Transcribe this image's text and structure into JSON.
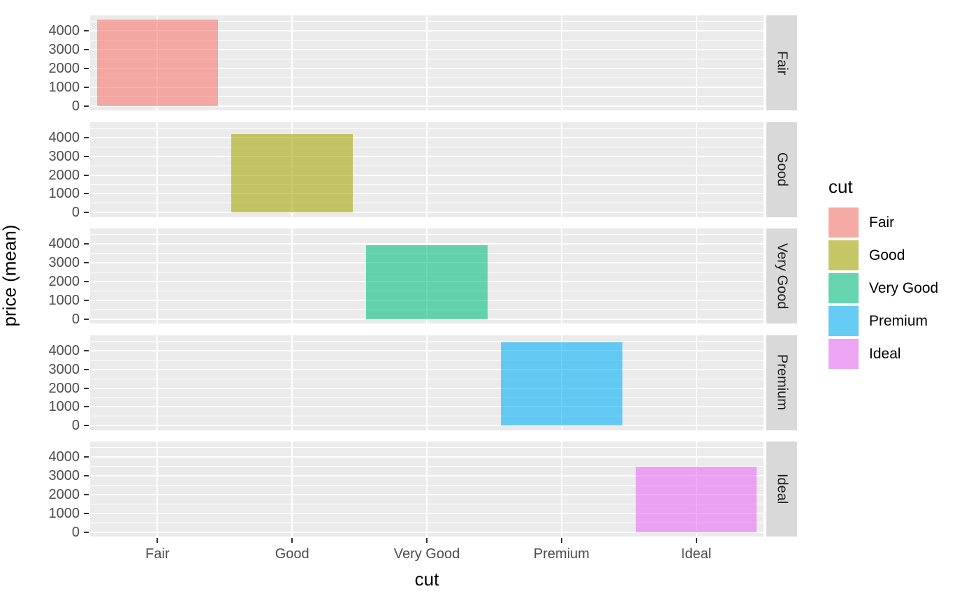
{
  "chart_data": {
    "type": "bar",
    "title": "",
    "xlabel": "cut",
    "ylabel": "price (mean)",
    "categories": [
      "Fair",
      "Good",
      "Very Good",
      "Premium",
      "Ideal"
    ],
    "values": [
      4600,
      4170,
      3950,
      4450,
      3500
    ],
    "facets": [
      "Fair",
      "Good",
      "Very Good",
      "Premium",
      "Ideal"
    ],
    "colors": [
      "#F8766D",
      "#A3A500",
      "#00BF7D",
      "#00B0F6",
      "#E76BF3"
    ],
    "fill_alpha": 0.58,
    "bar_width_fraction": 0.9,
    "y_ticks": [
      0,
      1000,
      2000,
      3000,
      4000
    ],
    "y_minor_ticks": [
      500,
      1500,
      2500,
      3500,
      4500
    ],
    "ylim": [
      -230,
      4830
    ],
    "grid": "white major+minor horizontal lines; white major vertical line at each category center",
    "legend": {
      "title": "cut",
      "position": "right",
      "entries": [
        "Fair",
        "Good",
        "Very Good",
        "Premium",
        "Ideal"
      ]
    }
  },
  "theme": {
    "background": "#FFFFFF",
    "panel_bg": "#EBEBEB",
    "strip_bg": "#D9D9D9",
    "grid_color": "#FFFFFF",
    "tick_label_color": "#4D4D4D",
    "tick_mark_color": "#333333",
    "axis_title_color": "#000000",
    "strip_text_color": "#1A1A1A",
    "legend_key_bg": "#F2F2F2"
  }
}
